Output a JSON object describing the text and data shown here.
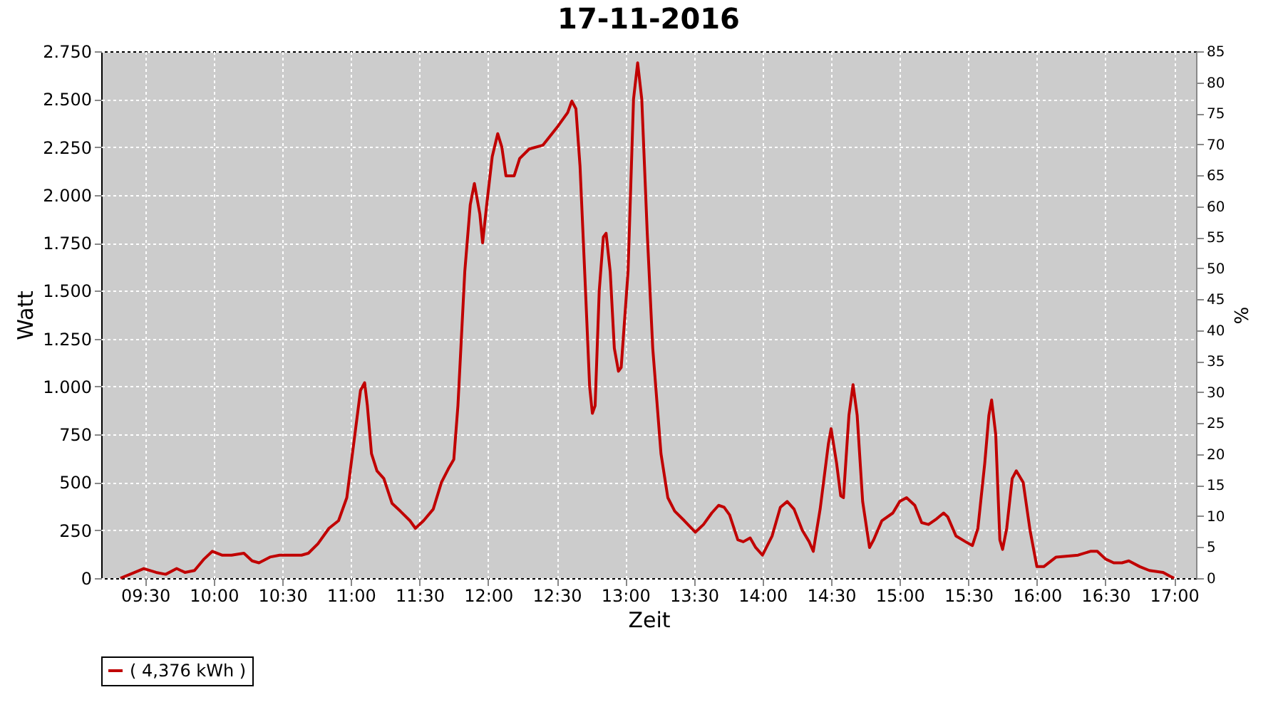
{
  "chart_data": {
    "type": "line",
    "title": "17-11-2016",
    "xlabel": "Zeit",
    "ylabel": "Watt",
    "y2label": "%",
    "x": [
      9.32,
      9.39,
      9.49,
      9.58,
      9.65,
      9.73,
      9.79,
      9.86,
      9.93,
      9.99,
      10.06,
      10.13,
      10.22,
      10.28,
      10.33,
      10.41,
      10.48,
      10.64,
      10.69,
      10.76,
      10.84,
      10.91,
      10.97,
      11.02,
      11.07,
      11.1,
      11.12,
      11.15,
      11.19,
      11.24,
      11.3,
      11.36,
      11.43,
      11.47,
      11.53,
      11.6,
      11.66,
      11.71,
      11.75,
      11.78,
      11.83,
      11.87,
      11.9,
      11.94,
      11.96,
      11.99,
      12.03,
      12.07,
      12.1,
      12.13,
      12.19,
      12.23,
      12.3,
      12.4,
      12.51,
      12.58,
      12.61,
      12.64,
      12.67,
      12.71,
      12.74,
      12.76,
      12.78,
      12.81,
      12.84,
      12.86,
      12.89,
      12.92,
      12.95,
      12.97,
      13.02,
      13.06,
      13.09,
      13.12,
      13.16,
      13.2,
      13.26,
      13.31,
      13.36,
      13.43,
      13.51,
      13.57,
      13.63,
      13.68,
      13.72,
      13.76,
      13.82,
      13.86,
      13.91,
      13.95,
      14.0,
      14.07,
      14.13,
      14.18,
      14.23,
      14.29,
      14.34,
      14.37,
      14.42,
      14.48,
      14.5,
      14.54,
      14.57,
      14.59,
      14.63,
      14.66,
      14.69,
      14.73,
      14.78,
      14.81,
      14.87,
      14.95,
      15.0,
      15.05,
      15.11,
      15.16,
      15.21,
      15.27,
      15.32,
      15.35,
      15.41,
      15.48,
      15.53,
      15.57,
      15.62,
      15.65,
      15.67,
      15.7,
      15.73,
      15.75,
      15.78,
      15.82,
      15.85,
      15.9,
      15.95,
      16.0,
      16.05,
      16.14,
      16.3,
      16.39,
      16.44,
      16.5,
      16.56,
      16.62,
      16.67,
      16.75,
      16.82,
      16.92,
      16.97,
      17.0
    ],
    "series": [
      {
        "name": "( 4,376 kWh )",
        "color": "#c00000",
        "values": [
          0,
          20,
          50,
          30,
          20,
          50,
          30,
          40,
          100,
          140,
          120,
          120,
          130,
          90,
          80,
          110,
          120,
          120,
          130,
          180,
          260,
          300,
          420,
          700,
          980,
          1020,
          900,
          650,
          560,
          520,
          390,
          350,
          300,
          260,
          300,
          360,
          500,
          570,
          620,
          900,
          1600,
          1950,
          2060,
          1900,
          1750,
          1950,
          2200,
          2320,
          2250,
          2100,
          2100,
          2190,
          2240,
          2260,
          2360,
          2430,
          2490,
          2450,
          2150,
          1500,
          1000,
          860,
          900,
          1500,
          1780,
          1800,
          1600,
          1200,
          1080,
          1100,
          1600,
          2500,
          2690,
          2500,
          1800,
          1200,
          650,
          420,
          350,
          300,
          240,
          280,
          340,
          380,
          370,
          330,
          200,
          190,
          210,
          160,
          120,
          220,
          370,
          400,
          360,
          250,
          190,
          140,
          360,
          700,
          780,
          600,
          430,
          420,
          850,
          1010,
          850,
          400,
          160,
          200,
          300,
          340,
          400,
          420,
          380,
          290,
          280,
          310,
          340,
          320,
          220,
          190,
          170,
          260,
          600,
          850,
          930,
          750,
          200,
          150,
          260,
          520,
          560,
          500,
          250,
          60,
          60,
          110,
          120,
          140,
          140,
          100,
          80,
          80,
          90,
          60,
          40,
          30,
          10,
          0
        ]
      }
    ],
    "xlim": [
      9.18,
      17.16
    ],
    "xticks": [
      {
        "value": 9.5,
        "label": "09:30"
      },
      {
        "value": 10,
        "label": "10:00"
      },
      {
        "value": 10.5,
        "label": "10:30"
      },
      {
        "value": 11,
        "label": "11:00"
      },
      {
        "value": 11.5,
        "label": "11:30"
      },
      {
        "value": 12,
        "label": "12:00"
      },
      {
        "value": 12.5,
        "label": "12:30"
      },
      {
        "value": 13,
        "label": "13:00"
      },
      {
        "value": 13.5,
        "label": "13:30"
      },
      {
        "value": 14,
        "label": "14:00"
      },
      {
        "value": 14.5,
        "label": "14:30"
      },
      {
        "value": 15,
        "label": "15:00"
      },
      {
        "value": 15.5,
        "label": "15:30"
      },
      {
        "value": 16,
        "label": "16:00"
      },
      {
        "value": 16.5,
        "label": "16:30"
      },
      {
        "value": 17,
        "label": "17:00"
      }
    ],
    "ylim": [
      0,
      2750
    ],
    "yticks": [
      0,
      250,
      500,
      750,
      {
        "value": 1000,
        "label": "1.000"
      },
      {
        "value": 1250,
        "label": "1.250"
      },
      {
        "value": 1500,
        "label": "1.500"
      },
      {
        "value": 1750,
        "label": "1.750"
      },
      {
        "value": 2000,
        "label": "2.000"
      },
      {
        "value": 2250,
        "label": "2.250"
      },
      {
        "value": 2500,
        "label": "2.500"
      },
      {
        "value": 2750,
        "label": "2.750"
      }
    ],
    "y2lim": [
      0,
      85
    ],
    "y2ticks": [
      0,
      5,
      10,
      15,
      20,
      25,
      30,
      35,
      40,
      45,
      50,
      55,
      60,
      65,
      70,
      75,
      80,
      85
    ],
    "grid": true,
    "legend": "bottom",
    "marker": "none",
    "line_style": "solid"
  }
}
